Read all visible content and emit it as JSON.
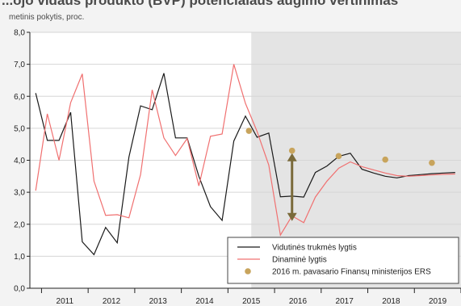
{
  "header": {
    "title": "...ojo vidaus produkto (BVP) potencialaus augimo vertinimas",
    "subtitle": "metinis pokytis, proc."
  },
  "chart_data": {
    "type": "line",
    "ylim": [
      0,
      8
    ],
    "yticks": [
      "0,0",
      "1,0",
      "2,0",
      "3,0",
      "4,0",
      "5,0",
      "6,0",
      "7,0",
      "8,0"
    ],
    "years": [
      "2011",
      "2012",
      "2013",
      "2014",
      "2015",
      "2016",
      "2017",
      "2018",
      "2019"
    ],
    "xrange": [
      2010.75,
      2020.0
    ],
    "forecast_start": 2015.5,
    "forecast_shading": "#e4e4e4",
    "grid": true,
    "legend_position": "bottom-right",
    "series": [
      {
        "name": "Vidutinės trukmės lygtis",
        "color": "#1a1a1a",
        "x": [
          2010.875,
          2011.125,
          2011.375,
          2011.625,
          2011.875,
          2012.125,
          2012.375,
          2012.625,
          2012.875,
          2013.125,
          2013.375,
          2013.625,
          2013.875,
          2014.125,
          2014.375,
          2014.625,
          2014.875,
          2015.125,
          2015.375,
          2015.625,
          2015.875,
          2016.125,
          2016.375,
          2016.625,
          2016.875,
          2017.125,
          2017.375,
          2017.625,
          2017.875,
          2018.125,
          2018.375,
          2018.625,
          2018.875,
          2019.125,
          2019.375,
          2019.625,
          2019.875
        ],
        "y": [
          6.1,
          4.62,
          4.62,
          5.5,
          1.45,
          1.05,
          1.9,
          1.42,
          4.1,
          5.7,
          5.58,
          6.72,
          4.7,
          4.7,
          3.5,
          2.55,
          2.12,
          4.6,
          5.38,
          4.72,
          4.85,
          2.86,
          2.88,
          2.85,
          3.62,
          3.82,
          4.12,
          4.22,
          3.72,
          3.6,
          3.5,
          3.45,
          3.52,
          3.55,
          3.58,
          3.6,
          3.62
        ]
      },
      {
        "name": "Dinaminė lygtis",
        "color": "#f07070",
        "x": [
          2010.875,
          2011.125,
          2011.375,
          2011.625,
          2011.875,
          2012.125,
          2012.375,
          2012.625,
          2012.875,
          2013.125,
          2013.375,
          2013.625,
          2013.875,
          2014.125,
          2014.375,
          2014.625,
          2014.875,
          2015.125,
          2015.375,
          2015.625,
          2015.875,
          2016.125,
          2016.375,
          2016.625,
          2016.875,
          2017.125,
          2017.375,
          2017.625,
          2017.875,
          2018.125,
          2018.375,
          2018.625,
          2018.875,
          2019.125,
          2019.375,
          2019.625,
          2019.875
        ],
        "y": [
          3.05,
          5.45,
          4.0,
          5.8,
          6.7,
          3.35,
          2.28,
          2.3,
          2.2,
          3.55,
          6.2,
          4.7,
          4.15,
          4.68,
          3.2,
          4.75,
          4.82,
          7.0,
          5.78,
          4.9,
          3.85,
          1.66,
          2.26,
          2.05,
          2.85,
          3.35,
          3.75,
          3.95,
          3.8,
          3.7,
          3.6,
          3.52,
          3.5,
          3.52,
          3.54,
          3.56,
          3.57
        ]
      },
      {
        "name": "2016 m. pavasario Finansų ministerijos ERS",
        "color": "#c8a45c",
        "type": "scatter",
        "x": [
          2015.45,
          2016.375,
          2017.375,
          2018.375,
          2019.375
        ],
        "y": [
          4.92,
          4.3,
          4.13,
          4.02,
          3.92
        ]
      }
    ],
    "annotations": [
      {
        "type": "double-arrow",
        "color": "#7a6a3a",
        "x": 2016.375,
        "y1": 4.22,
        "y2": 2.1
      }
    ]
  }
}
